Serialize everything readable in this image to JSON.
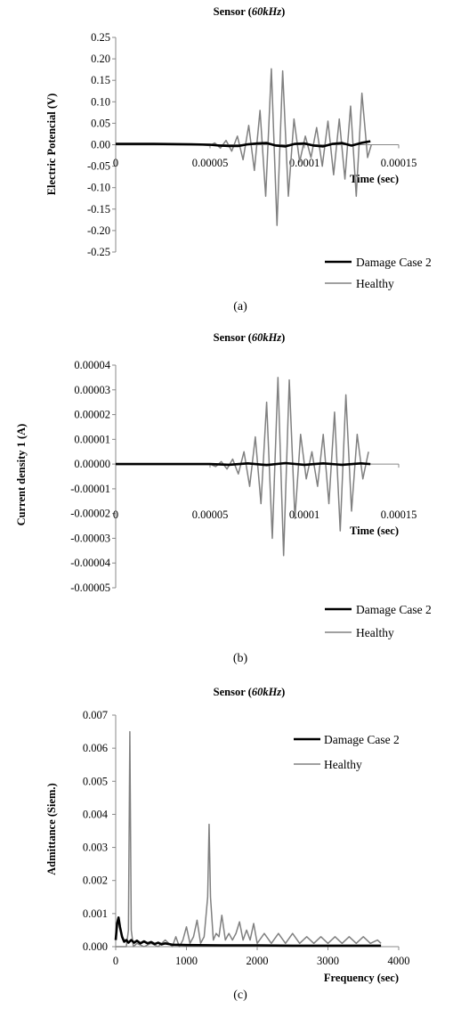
{
  "chart_data": [
    {
      "type": "line",
      "panel_label": "(a)",
      "title": "Sensor (60kHz)",
      "title_main": "Sensor (",
      "title_italic": "60kHz",
      "title_close": ")",
      "xlabel": "Time (sec)",
      "ylabel": "Electric Potencial (V)",
      "xlim": [
        0,
        0.00015
      ],
      "ylim": [
        -0.25,
        0.25
      ],
      "x_ticks": [
        "0",
        "0.00005",
        "0.0001",
        "0.00015"
      ],
      "x_tick_values": [
        0,
        5e-05,
        0.0001,
        0.00015
      ],
      "y_ticks": [
        "0.25",
        "0.20",
        "0.15",
        "0.10",
        "0.05",
        "0.00",
        "-0.05",
        "-0.10",
        "-0.15",
        "-0.20",
        "-0.25"
      ],
      "y_tick_values": [
        0.25,
        0.2,
        0.15,
        0.1,
        0.05,
        0.0,
        -0.05,
        -0.1,
        -0.15,
        -0.2,
        -0.25
      ],
      "series": [
        {
          "name": "Damage Case 2",
          "color": "#000000",
          "x": [
            0,
            2e-05,
            4e-05,
            5e-05,
            5.5e-05,
            6e-05,
            6.5e-05,
            7e-05,
            7.5e-05,
            8e-05,
            8.5e-05,
            9e-05,
            9.5e-05,
            0.0001,
            0.000105,
            0.00011,
            0.000115,
            0.00012,
            0.000125,
            0.00013,
            0.000135
          ],
          "y": [
            0.002,
            0.002,
            0.001,
            0.0,
            -0.002,
            -0.003,
            -0.003,
            0.001,
            0.003,
            0.004,
            -0.002,
            -0.004,
            0.002,
            0.003,
            -0.002,
            -0.004,
            0.002,
            0.004,
            -0.002,
            0.004,
            0.008
          ]
        },
        {
          "name": "Healthy",
          "color": "#808080",
          "x": [
            0,
            3e-05,
            4.5e-05,
            5e-05,
            5.25e-05,
            5.55e-05,
            5.85e-05,
            6.15e-05,
            6.45e-05,
            6.75e-05,
            7.05e-05,
            7.35e-05,
            7.65e-05,
            7.95e-05,
            8.25e-05,
            8.55e-05,
            8.85e-05,
            9.15e-05,
            9.45e-05,
            9.75e-05,
            0.0001005,
            0.0001035,
            0.0001065,
            0.0001095,
            0.0001125,
            0.0001155,
            0.0001185,
            0.0001215,
            0.0001245,
            0.0001275,
            0.0001305,
            0.0001335,
            0.0001355
          ],
          "y": [
            0.0,
            0.0,
            0.0,
            -0.002,
            0.004,
            -0.008,
            0.01,
            -0.015,
            0.02,
            -0.035,
            0.045,
            -0.06,
            0.08,
            -0.12,
            0.177,
            -0.188,
            0.172,
            -0.12,
            0.06,
            -0.04,
            0.02,
            -0.03,
            0.04,
            -0.05,
            0.055,
            -0.07,
            0.06,
            -0.08,
            0.09,
            -0.12,
            0.12,
            -0.03,
            0.0
          ]
        }
      ]
    },
    {
      "type": "line",
      "panel_label": "(b)",
      "title": "Sensor (60kHz)",
      "title_main": "Sensor (",
      "title_italic": "60kHz",
      "title_close": ")",
      "xlabel": "Time (sec)",
      "ylabel": "Current density 1 (A)",
      "xlim": [
        0,
        0.00015
      ],
      "ylim": [
        -5e-05,
        4e-05
      ],
      "x_ticks": [
        "0",
        "0.00005",
        "0.0001",
        "0.00015"
      ],
      "x_tick_values": [
        0,
        5e-05,
        0.0001,
        0.00015
      ],
      "y_ticks": [
        "0.00004",
        "0.00003",
        "0.00002",
        "0.00001",
        "0.00000",
        "-0.00001",
        "-0.00002",
        "-0.00003",
        "-0.00004",
        "-0.00005"
      ],
      "y_tick_values": [
        4e-05,
        3e-05,
        2e-05,
        1e-05,
        0.0,
        -1e-05,
        -2e-05,
        -3e-05,
        -4e-05,
        -5e-05
      ],
      "series": [
        {
          "name": "Damage Case 2",
          "color": "#000000",
          "x": [
            0,
            4e-05,
            5e-05,
            6e-05,
            7e-05,
            8e-05,
            9e-05,
            0.0001,
            0.00011,
            0.00012,
            0.00013,
            0.000135
          ],
          "y": [
            0.0,
            0.0,
            0.0,
            -3e-07,
            3e-07,
            -4e-07,
            4e-07,
            -3e-07,
            3e-07,
            -3e-07,
            3e-07,
            0.0
          ]
        },
        {
          "name": "Healthy",
          "color": "#808080",
          "x": [
            0,
            4e-05,
            5e-05,
            5.3e-05,
            5.6e-05,
            5.9e-05,
            6.2e-05,
            6.5e-05,
            6.8e-05,
            7.1e-05,
            7.4e-05,
            7.7e-05,
            8e-05,
            8.3e-05,
            8.6e-05,
            8.9e-05,
            9.2e-05,
            9.5e-05,
            9.8e-05,
            0.000101,
            0.000104,
            0.000107,
            0.00011,
            0.000113,
            0.000116,
            0.000119,
            0.000122,
            0.000125,
            0.000128,
            0.000131,
            0.000134
          ],
          "y": [
            0.0,
            0.0,
            0.0,
            -1e-06,
            1e-06,
            -2e-06,
            2e-06,
            -4e-06,
            5e-06,
            -9e-06,
            1.1e-05,
            -1.6e-05,
            2.5e-05,
            -3e-05,
            3.5e-05,
            -3.7e-05,
            3.4e-05,
            -2.2e-05,
            1.2e-05,
            -6e-06,
            5e-06,
            -9e-06,
            1.2e-05,
            -1.6e-05,
            2.1e-05,
            -2.7e-05,
            2.8e-05,
            -1.9e-05,
            1.2e-05,
            -6e-06,
            5e-06
          ]
        }
      ]
    },
    {
      "type": "line",
      "panel_label": "(c)",
      "title": "Sensor (60kHz)",
      "title_main": "Sensor (",
      "title_italic": "60kHz",
      "title_close": ")",
      "xlabel": "Frequency (sec)",
      "ylabel": "Admittance (Siem.)",
      "xlim": [
        0,
        4000
      ],
      "ylim": [
        0,
        0.007
      ],
      "x_ticks": [
        "0",
        "1000",
        "2000",
        "3000",
        "4000"
      ],
      "x_tick_values": [
        0,
        1000,
        2000,
        3000,
        4000
      ],
      "y_ticks": [
        "0.007",
        "0.006",
        "0.005",
        "0.004",
        "0.003",
        "0.002",
        "0.001",
        "0.000"
      ],
      "y_tick_values": [
        0.007,
        0.006,
        0.005,
        0.004,
        0.003,
        0.002,
        0.001,
        0.0
      ],
      "series": [
        {
          "name": "Damage Case 2",
          "color": "#000000",
          "x": [
            0,
            20,
            40,
            60,
            90,
            120,
            150,
            180,
            220,
            260,
            300,
            350,
            400,
            450,
            500,
            550,
            600,
            650,
            700,
            800,
            1000,
            1500,
            2000,
            2500,
            3000,
            3500,
            3750
          ],
          "y": [
            0.0002,
            0.0007,
            0.00088,
            0.0006,
            0.0003,
            0.00015,
            0.0002,
            0.00012,
            0.0002,
            0.00012,
            0.00018,
            0.0001,
            0.00016,
            0.0001,
            0.00014,
            8e-05,
            0.00012,
            7e-05,
            0.0001,
            6e-05,
            5e-05,
            4e-05,
            4e-05,
            3e-05,
            3e-05,
            3e-05,
            3e-05
          ]
        },
        {
          "name": "Healthy",
          "color": "#808080",
          "x": [
            0,
            100,
            150,
            180,
            200,
            220,
            250,
            300,
            400,
            500,
            600,
            700,
            800,
            850,
            900,
            950,
            1000,
            1050,
            1100,
            1150,
            1200,
            1250,
            1300,
            1320,
            1340,
            1380,
            1420,
            1460,
            1500,
            1550,
            1600,
            1650,
            1700,
            1750,
            1800,
            1850,
            1900,
            1950,
            2000,
            2100,
            2200,
            2300,
            2400,
            2500,
            2600,
            2700,
            2800,
            2900,
            3000,
            3100,
            3200,
            3300,
            3400,
            3500,
            3600,
            3700,
            3750
          ],
          "y": [
            0.0,
            0.0,
            0.0,
            0.0005,
            0.0065,
            0.0005,
            0.0,
            0.0001,
            0.0,
            0.0001,
            0.0,
            0.0002,
            0.0,
            0.0003,
            0.0,
            0.0002,
            0.0006,
            0.0001,
            0.0003,
            0.0008,
            0.0001,
            0.0003,
            0.0015,
            0.0037,
            0.0015,
            0.0002,
            0.0004,
            0.0003,
            0.00095,
            0.0002,
            0.0004,
            0.0002,
            0.0004,
            0.00075,
            0.0002,
            0.0005,
            0.0002,
            0.0007,
            0.0001,
            0.0004,
            0.0001,
            0.0004,
            0.0001,
            0.0004,
            0.0001,
            0.0003,
            0.0001,
            0.0003,
            0.0001,
            0.0003,
            0.0001,
            0.0003,
            0.0001,
            0.0003,
            0.0001,
            0.0002,
            0.0001
          ]
        }
      ]
    }
  ]
}
